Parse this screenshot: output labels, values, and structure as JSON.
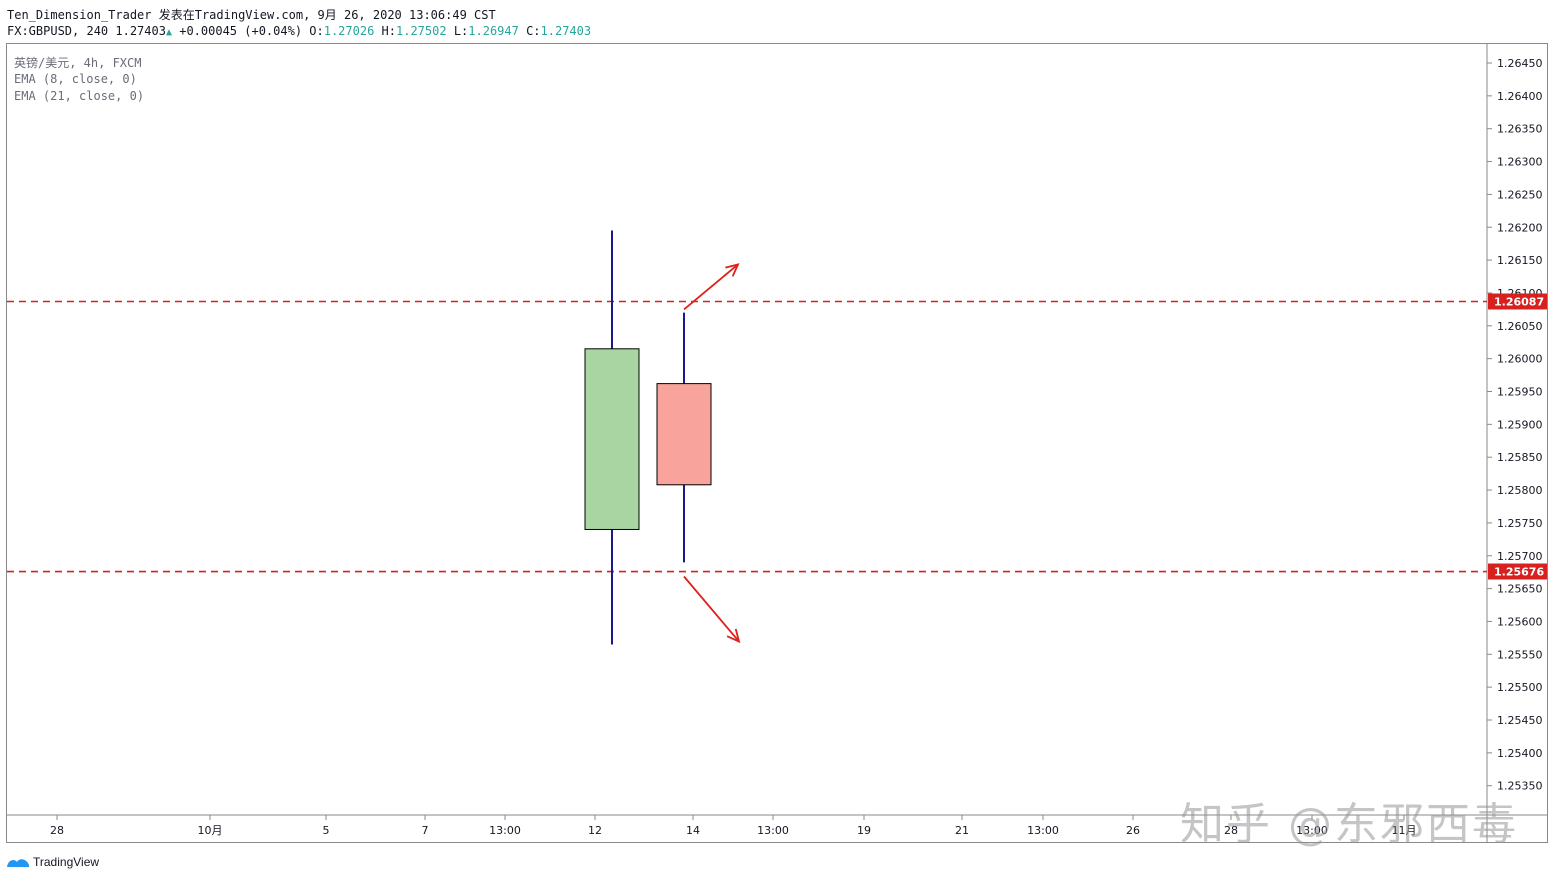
{
  "header": {
    "publisher": "Ten_Dimension_Trader 发表在TradingView.com, 9月 26, 2020 13:06:49 CST",
    "symbol_line": "FX:GBPUSD, 240 1.27403",
    "change": "+0.00045 (+0.04%)",
    "o_label": "O:",
    "o_value": "1.27026",
    "h_label": "H:",
    "h_value": "1.27502",
    "l_label": "L:",
    "l_value": "1.26947",
    "c_label": "C:",
    "c_value": "1.27403"
  },
  "indicators": {
    "symbol_info": "英镑/美元, 4h, FXCM",
    "ema_fast": "EMA (8, close, 0)",
    "ema_slow": "EMA (21, close, 0)"
  },
  "footer": {
    "brand": "TradingView"
  },
  "watermark": "知乎 @东邪西毒",
  "colors": {
    "bull": "#a8d5a2",
    "bear": "#f8a49c",
    "wick": "#1a1a8c",
    "level": "#d8201e",
    "arrow": "#e0201a",
    "axis_text": "#131722"
  },
  "chart_data": {
    "type": "candlestick",
    "ylim": [
      1.2531,
      1.2648
    ],
    "y_ticks": [
      "1.26450",
      "1.26400",
      "1.26350",
      "1.26300",
      "1.26250",
      "1.26200",
      "1.26150",
      "1.26100",
      "1.26050",
      "1.26000",
      "1.25950",
      "1.25900",
      "1.25850",
      "1.25800",
      "1.25750",
      "1.25700",
      "1.25650",
      "1.25600",
      "1.25550",
      "1.25500",
      "1.25450",
      "1.25400",
      "1.25350"
    ],
    "x_ticks": [
      "28",
      "10月",
      "5",
      "7",
      "13:00",
      "12",
      "14",
      "13:00",
      "19",
      "21",
      "13:00",
      "26",
      "28",
      "13:00",
      "11月"
    ],
    "candles": [
      {
        "open": 1.2574,
        "high": 1.26195,
        "low": 1.25565,
        "close": 1.26015,
        "direction": "bull"
      },
      {
        "open": 1.25962,
        "high": 1.2607,
        "low": 1.2569,
        "close": 1.25808,
        "direction": "bear"
      }
    ],
    "levels": [
      {
        "value": 1.26087,
        "label": "1.26087"
      },
      {
        "value": 1.25676,
        "label": "1.25676"
      }
    ],
    "annotations": [
      {
        "type": "arrow",
        "direction": "up"
      },
      {
        "type": "arrow",
        "direction": "down"
      }
    ]
  }
}
